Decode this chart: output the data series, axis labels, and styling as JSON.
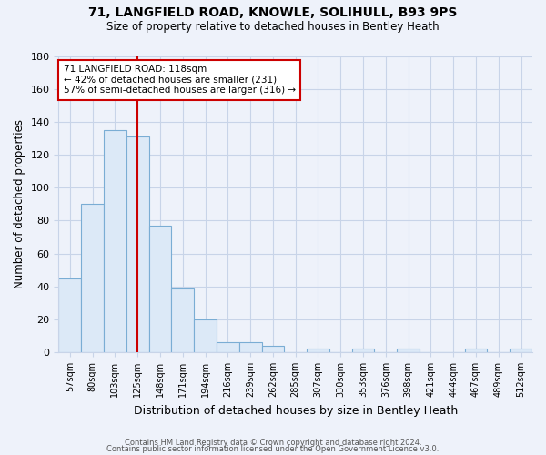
{
  "title1": "71, LANGFIELD ROAD, KNOWLE, SOLIHULL, B93 9PS",
  "title2": "Size of property relative to detached houses in Bentley Heath",
  "xlabel": "Distribution of detached houses by size in Bentley Heath",
  "ylabel": "Number of detached properties",
  "categories": [
    "57sqm",
    "80sqm",
    "103sqm",
    "125sqm",
    "148sqm",
    "171sqm",
    "194sqm",
    "216sqm",
    "239sqm",
    "262sqm",
    "285sqm",
    "307sqm",
    "330sqm",
    "353sqm",
    "376sqm",
    "398sqm",
    "421sqm",
    "444sqm",
    "467sqm",
    "489sqm",
    "512sqm"
  ],
  "values": [
    45,
    90,
    135,
    131,
    77,
    39,
    20,
    6,
    6,
    4,
    0,
    2,
    0,
    2,
    0,
    2,
    0,
    0,
    2,
    0,
    2
  ],
  "bar_color": "#dce9f7",
  "bar_edge_color": "#7aadd4",
  "vline_color": "#cc0000",
  "vline_x": 3.0,
  "annotation_text": "71 LANGFIELD ROAD: 118sqm\n← 42% of detached houses are smaller (231)\n57% of semi-detached houses are larger (316) →",
  "annotation_box_color": "white",
  "annotation_box_edge": "#cc0000",
  "ylim_max": 180,
  "yticks": [
    0,
    20,
    40,
    60,
    80,
    100,
    120,
    140,
    160,
    180
  ],
  "footer1": "Contains HM Land Registry data © Crown copyright and database right 2024.",
  "footer2": "Contains public sector information licensed under the Open Government Licence v3.0.",
  "bg_color": "#eef2fa",
  "grid_color": "#c8d4e8"
}
